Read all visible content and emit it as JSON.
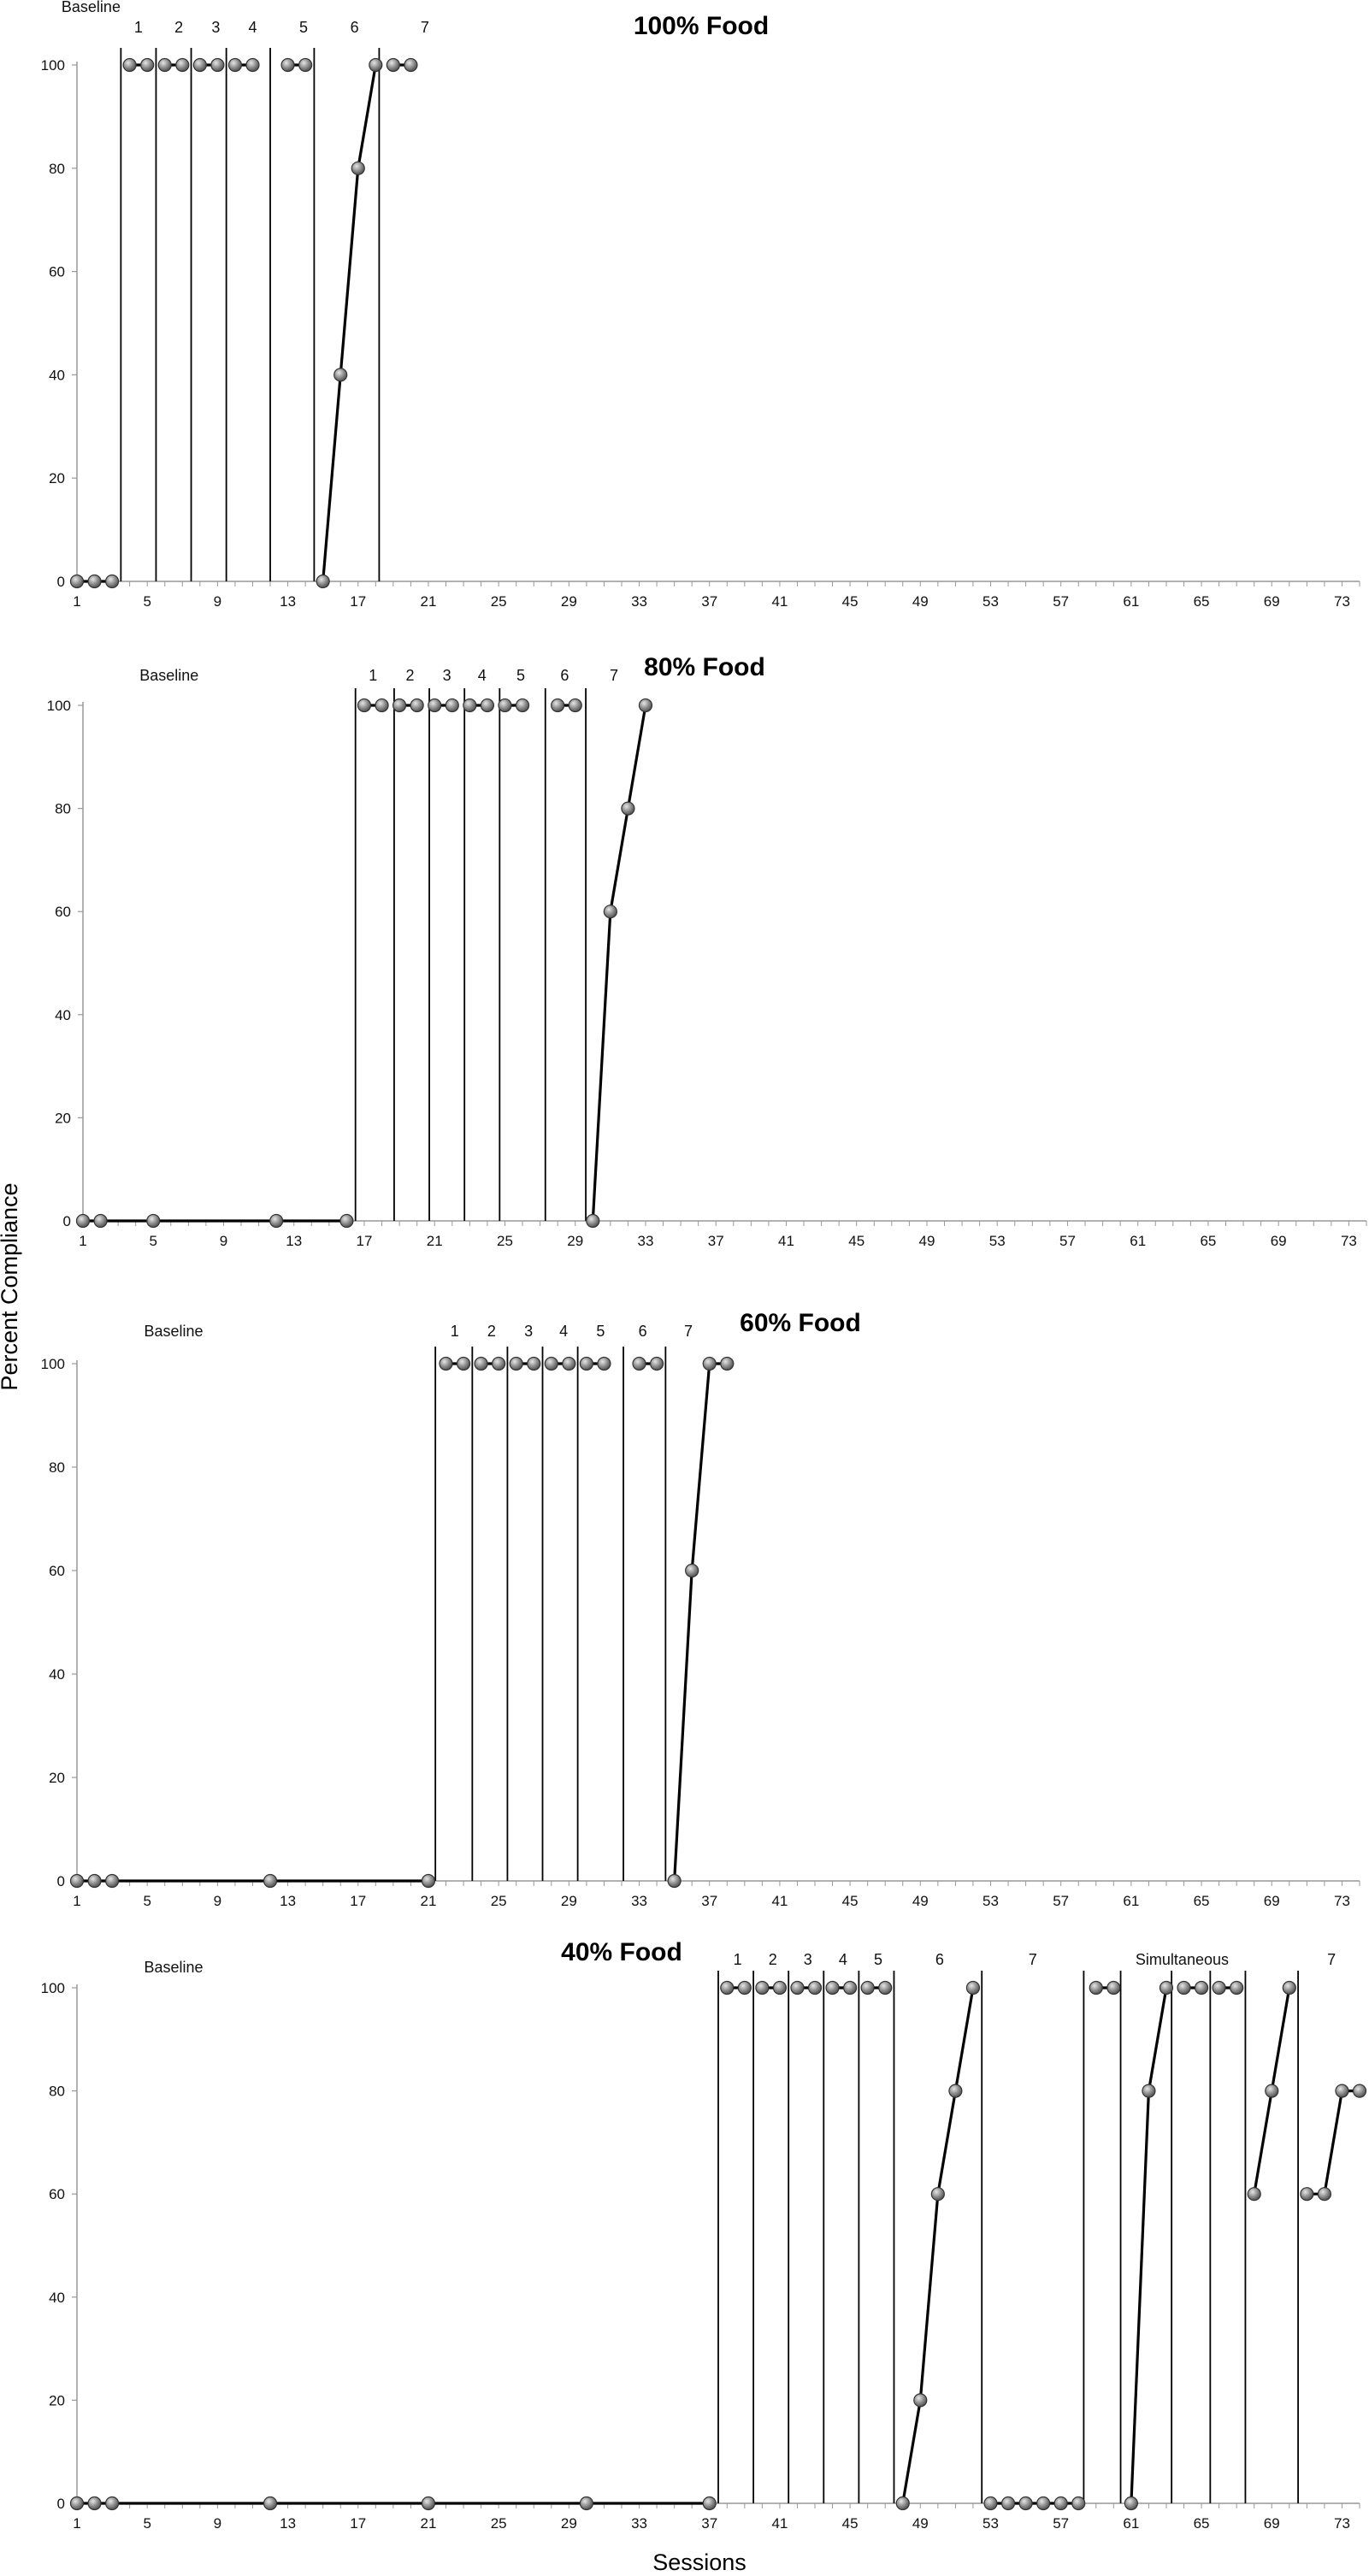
{
  "figure": {
    "ylabel": "Percent Compliance",
    "xlabel": "Sessions"
  },
  "chart_data": [
    {
      "type": "line",
      "title": "100% Food",
      "xlabel": "Sessions",
      "ylabel": "Percent Compliance",
      "ylim": [
        0,
        100
      ],
      "xlim": [
        1,
        74
      ],
      "y_ticks": [
        "0",
        "20",
        "40",
        "60",
        "80",
        "100"
      ],
      "x_ticks": [
        "1",
        "5",
        "9",
        "13",
        "17",
        "21",
        "25",
        "29",
        "33",
        "37",
        "41",
        "45",
        "49",
        "53",
        "57",
        "61",
        "65",
        "69",
        "73"
      ],
      "grid": false,
      "marker": "circle",
      "phase_lines": [
        3.5,
        5.5,
        7.5,
        9.5,
        12,
        14.5,
        18.2
      ],
      "phase_labels": [
        {
          "text": "Baseline",
          "x": 1.8
        },
        {
          "text": "1",
          "x": 4.5
        },
        {
          "text": "2",
          "x": 6.8
        },
        {
          "text": "3",
          "x": 8.9
        },
        {
          "text": "4",
          "x": 11
        },
        {
          "text": "5",
          "x": 13.9
        },
        {
          "text": "6",
          "x": 16.8
        },
        {
          "text": "7",
          "x": 20.8
        }
      ],
      "segments": [
        {
          "phase": "Baseline",
          "x": [
            1,
            2,
            3
          ],
          "y": [
            0,
            0,
            0
          ]
        },
        {
          "phase": "1",
          "x": [
            4,
            5
          ],
          "y": [
            100,
            100
          ]
        },
        {
          "phase": "2",
          "x": [
            6,
            7
          ],
          "y": [
            100,
            100
          ]
        },
        {
          "phase": "3",
          "x": [
            8,
            9
          ],
          "y": [
            100,
            100
          ]
        },
        {
          "phase": "4",
          "x": [
            10,
            11
          ],
          "y": [
            100,
            100
          ]
        },
        {
          "phase": "5",
          "x": [
            13,
            14
          ],
          "y": [
            100,
            100
          ]
        },
        {
          "phase": "6",
          "x": [
            15,
            16,
            17,
            18
          ],
          "y": [
            0,
            40,
            80,
            100
          ]
        },
        {
          "phase": "7",
          "x": [
            19,
            20
          ],
          "y": [
            100,
            100
          ]
        }
      ]
    },
    {
      "type": "line",
      "title": "80% Food",
      "xlabel": "Sessions",
      "ylabel": "Percent Compliance",
      "ylim": [
        0,
        100
      ],
      "xlim": [
        1,
        74
      ],
      "y_ticks": [
        "0",
        "20",
        "40",
        "60",
        "80",
        "100"
      ],
      "x_ticks": [
        "1",
        "5",
        "9",
        "13",
        "17",
        "21",
        "25",
        "29",
        "33",
        "37",
        "41",
        "45",
        "49",
        "53",
        "57",
        "61",
        "65",
        "69",
        "73"
      ],
      "grid": false,
      "marker": "circle",
      "phase_lines": [
        16.5,
        18.7,
        20.7,
        22.7,
        24.7,
        27.3,
        29.6
      ],
      "phase_labels": [
        {
          "text": "Baseline",
          "x": 5.9
        },
        {
          "text": "1",
          "x": 17.5
        },
        {
          "text": "2",
          "x": 19.6
        },
        {
          "text": "3",
          "x": 21.7
        },
        {
          "text": "4",
          "x": 23.7
        },
        {
          "text": "5",
          "x": 25.9
        },
        {
          "text": "6",
          "x": 28.4
        },
        {
          "text": "7",
          "x": 31.2
        }
      ],
      "segments": [
        {
          "phase": "Baseline",
          "x": [
            1,
            2,
            5,
            12,
            16
          ],
          "y": [
            0,
            0,
            0,
            0,
            0
          ]
        },
        {
          "phase": "1",
          "x": [
            17,
            18
          ],
          "y": [
            100,
            100
          ]
        },
        {
          "phase": "2",
          "x": [
            19,
            20
          ],
          "y": [
            100,
            100
          ]
        },
        {
          "phase": "3",
          "x": [
            21,
            22
          ],
          "y": [
            100,
            100
          ]
        },
        {
          "phase": "4",
          "x": [
            23,
            24
          ],
          "y": [
            100,
            100
          ]
        },
        {
          "phase": "5",
          "x": [
            25,
            26
          ],
          "y": [
            100,
            100
          ]
        },
        {
          "phase": "6",
          "x": [
            28,
            29
          ],
          "y": [
            100,
            100
          ]
        },
        {
          "phase": "7",
          "x": [
            30,
            31,
            32,
            33
          ],
          "y": [
            0,
            60,
            80,
            100
          ]
        }
      ]
    },
    {
      "type": "line",
      "title": "60% Food",
      "xlabel": "Sessions",
      "ylabel": "Percent Compliance",
      "ylim": [
        0,
        100
      ],
      "xlim": [
        1,
        74
      ],
      "y_ticks": [
        "0",
        "20",
        "40",
        "60",
        "80",
        "100"
      ],
      "x_ticks": [
        "1",
        "5",
        "9",
        "13",
        "17",
        "21",
        "25",
        "29",
        "33",
        "37",
        "41",
        "45",
        "49",
        "53",
        "57",
        "61",
        "65",
        "69",
        "73"
      ],
      "grid": false,
      "marker": "circle",
      "phase_lines": [
        21.4,
        23.5,
        25.5,
        27.5,
        29.5,
        32.1,
        34.5
      ],
      "phase_labels": [
        {
          "text": "Baseline",
          "x": 6.5
        },
        {
          "text": "1",
          "x": 22.5
        },
        {
          "text": "2",
          "x": 24.6
        },
        {
          "text": "3",
          "x": 26.7
        },
        {
          "text": "4",
          "x": 28.7
        },
        {
          "text": "5",
          "x": 30.8
        },
        {
          "text": "6",
          "x": 33.2
        },
        {
          "text": "7",
          "x": 35.8
        }
      ],
      "segments": [
        {
          "phase": "Baseline",
          "x": [
            1,
            2,
            3,
            12,
            21
          ],
          "y": [
            0,
            0,
            0,
            0,
            0
          ]
        },
        {
          "phase": "1",
          "x": [
            22,
            23
          ],
          "y": [
            100,
            100
          ]
        },
        {
          "phase": "2",
          "x": [
            24,
            25
          ],
          "y": [
            100,
            100
          ]
        },
        {
          "phase": "3",
          "x": [
            26,
            27
          ],
          "y": [
            100,
            100
          ]
        },
        {
          "phase": "4",
          "x": [
            28,
            29
          ],
          "y": [
            100,
            100
          ]
        },
        {
          "phase": "5",
          "x": [
            30,
            31
          ],
          "y": [
            100,
            100
          ]
        },
        {
          "phase": "6",
          "x": [
            33,
            34
          ],
          "y": [
            100,
            100
          ]
        },
        {
          "phase": "7",
          "x": [
            35,
            36,
            37,
            38
          ],
          "y": [
            0,
            60,
            100,
            100
          ]
        }
      ]
    },
    {
      "type": "line",
      "title": "40% Food",
      "xlabel": "Sessions",
      "ylabel": "Percent Compliance",
      "ylim": [
        0,
        100
      ],
      "xlim": [
        1,
        74
      ],
      "y_ticks": [
        "0",
        "20",
        "40",
        "60",
        "80",
        "100"
      ],
      "x_ticks": [
        "1",
        "5",
        "9",
        "13",
        "17",
        "21",
        "25",
        "29",
        "33",
        "37",
        "41",
        "45",
        "49",
        "53",
        "57",
        "61",
        "65",
        "69",
        "73"
      ],
      "grid": false,
      "marker": "circle",
      "phase_lines": [
        37.5,
        39.5,
        41.5,
        43.5,
        45.5,
        47.5,
        52.5,
        58.3,
        60.4,
        63.3,
        65.5,
        67.5,
        70.5
      ],
      "phase_labels": [
        {
          "text": "Baseline",
          "x": 6.5
        },
        {
          "text": "1",
          "x": 38.6
        },
        {
          "text": "2",
          "x": 40.6
        },
        {
          "text": "3",
          "x": 42.6
        },
        {
          "text": "4",
          "x": 44.6
        },
        {
          "text": "5",
          "x": 46.6
        },
        {
          "text": "6",
          "x": 50.1
        },
        {
          "text": "7",
          "x": 55.4
        },
        {
          "text": "Simultaneous",
          "x": 63.9
        },
        {
          "text": "7",
          "x": 72.4
        }
      ],
      "segments": [
        {
          "phase": "Baseline",
          "x": [
            1,
            2,
            3,
            12,
            21,
            30,
            37
          ],
          "y": [
            0,
            0,
            0,
            0,
            0,
            0,
            0
          ]
        },
        {
          "phase": "1",
          "x": [
            38,
            39
          ],
          "y": [
            100,
            100
          ]
        },
        {
          "phase": "2",
          "x": [
            40,
            41
          ],
          "y": [
            100,
            100
          ]
        },
        {
          "phase": "3",
          "x": [
            42,
            43
          ],
          "y": [
            100,
            100
          ]
        },
        {
          "phase": "4",
          "x": [
            44,
            45
          ],
          "y": [
            100,
            100
          ]
        },
        {
          "phase": "5",
          "x": [
            46,
            47
          ],
          "y": [
            100,
            100
          ]
        },
        {
          "phase": "6",
          "x": [
            48,
            49,
            50,
            51,
            52
          ],
          "y": [
            0,
            20,
            60,
            80,
            100
          ]
        },
        {
          "phase": "7",
          "x": [
            53,
            54,
            55,
            56,
            57,
            58
          ],
          "y": [
            0,
            0,
            0,
            0,
            0,
            0
          ]
        },
        {
          "phase": "Simultaneous",
          "x": [
            59,
            60
          ],
          "y": [
            100,
            100
          ]
        },
        {
          "phase": "Simultaneous",
          "x": [
            61,
            62,
            63
          ],
          "y": [
            0,
            80,
            100
          ]
        },
        {
          "phase": "Simultaneous",
          "x": [
            64,
            65
          ],
          "y": [
            100,
            100
          ]
        },
        {
          "phase": "Simultaneous",
          "x": [
            66,
            67
          ],
          "y": [
            100,
            100
          ]
        },
        {
          "phase": "Simultaneous",
          "x": [
            68,
            69,
            70
          ],
          "y": [
            60,
            80,
            100
          ]
        },
        {
          "phase": "7",
          "x": [
            71,
            72,
            73,
            74
          ],
          "y": [
            60,
            60,
            80,
            80
          ]
        }
      ]
    }
  ]
}
